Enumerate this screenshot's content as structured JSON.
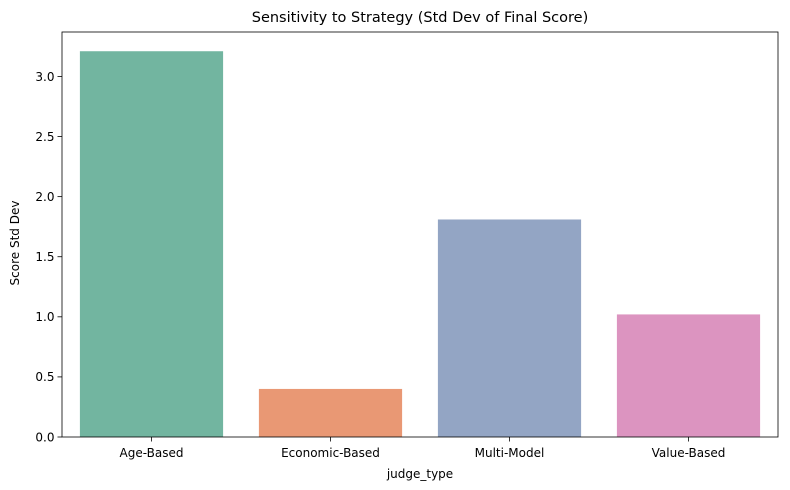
{
  "chart_data": {
    "type": "bar",
    "title": "Sensitivity to Strategy (Std Dev of Final Score)",
    "xlabel": "judge_type",
    "ylabel": "Score Std Dev",
    "categories": [
      "Age-Based",
      "Economic-Based",
      "Multi-Model",
      "Value-Based"
    ],
    "values": [
      3.21,
      0.4,
      1.81,
      1.02
    ],
    "colors": [
      "#72b5a0",
      "#e99874",
      "#93a5c4",
      "#dc94c0"
    ],
    "ylim": [
      0,
      3.37
    ],
    "yticks": [
      0.0,
      0.5,
      1.0,
      1.5,
      2.0,
      2.5,
      3.0
    ],
    "ytick_labels": [
      "0.0",
      "0.5",
      "1.0",
      "1.5",
      "2.0",
      "2.5",
      "3.0"
    ],
    "grid": false,
    "legend": "none"
  }
}
